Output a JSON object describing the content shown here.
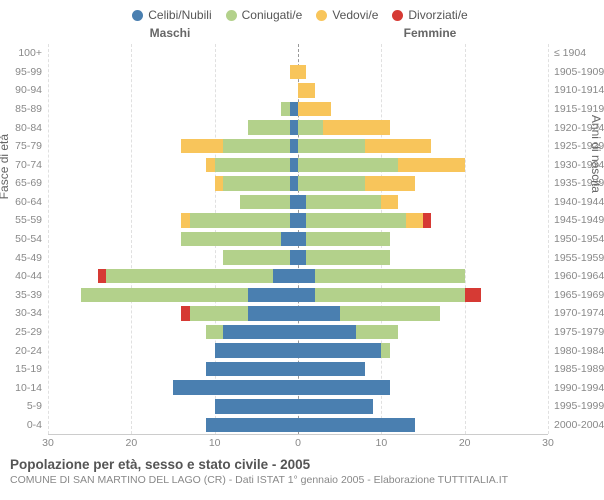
{
  "legend": [
    {
      "label": "Celibi/Nubili",
      "color": "#4a7fb0"
    },
    {
      "label": "Coniugati/e",
      "color": "#b3d18b"
    },
    {
      "label": "Vedovi/e",
      "color": "#f8c55b"
    },
    {
      "label": "Divorziati/e",
      "color": "#d63a34"
    }
  ],
  "header_left": "Maschi",
  "header_right": "Femmine",
  "y_left_label": "Fasce di età",
  "y_right_label": "Anni di nascita",
  "x_max": 30,
  "x_ticks": [
    30,
    20,
    10,
    0,
    10,
    20,
    30
  ],
  "colors": {
    "celibi": "#4a7fb0",
    "coniugati": "#b3d18b",
    "vedovi": "#f8c55b",
    "divorziati": "#d63a34",
    "grid": "#e0e0e0",
    "center": "#999999",
    "background": "#ffffff"
  },
  "rows": [
    {
      "age": "100+",
      "birth": "≤ 1904",
      "m": {
        "c": 0,
        "co": 0,
        "v": 0,
        "d": 0
      },
      "f": {
        "c": 0,
        "co": 0,
        "v": 0,
        "d": 0
      }
    },
    {
      "age": "95-99",
      "birth": "1905-1909",
      "m": {
        "c": 0,
        "co": 0,
        "v": 1,
        "d": 0
      },
      "f": {
        "c": 0,
        "co": 0,
        "v": 1,
        "d": 0
      }
    },
    {
      "age": "90-94",
      "birth": "1910-1914",
      "m": {
        "c": 0,
        "co": 0,
        "v": 0,
        "d": 0
      },
      "f": {
        "c": 0,
        "co": 0,
        "v": 2,
        "d": 0
      }
    },
    {
      "age": "85-89",
      "birth": "1915-1919",
      "m": {
        "c": 1,
        "co": 1,
        "v": 0,
        "d": 0
      },
      "f": {
        "c": 0,
        "co": 0,
        "v": 4,
        "d": 0
      }
    },
    {
      "age": "80-84",
      "birth": "1920-1924",
      "m": {
        "c": 1,
        "co": 5,
        "v": 0,
        "d": 0
      },
      "f": {
        "c": 0,
        "co": 3,
        "v": 8,
        "d": 0
      }
    },
    {
      "age": "75-79",
      "birth": "1925-1929",
      "m": {
        "c": 1,
        "co": 8,
        "v": 5,
        "d": 0
      },
      "f": {
        "c": 0,
        "co": 8,
        "v": 8,
        "d": 0
      }
    },
    {
      "age": "70-74",
      "birth": "1930-1934",
      "m": {
        "c": 1,
        "co": 9,
        "v": 1,
        "d": 0
      },
      "f": {
        "c": 0,
        "co": 12,
        "v": 8,
        "d": 0
      }
    },
    {
      "age": "65-69",
      "birth": "1935-1939",
      "m": {
        "c": 1,
        "co": 8,
        "v": 1,
        "d": 0
      },
      "f": {
        "c": 0,
        "co": 8,
        "v": 6,
        "d": 0
      }
    },
    {
      "age": "60-64",
      "birth": "1940-1944",
      "m": {
        "c": 1,
        "co": 6,
        "v": 0,
        "d": 0
      },
      "f": {
        "c": 1,
        "co": 9,
        "v": 2,
        "d": 0
      }
    },
    {
      "age": "55-59",
      "birth": "1945-1949",
      "m": {
        "c": 1,
        "co": 12,
        "v": 1,
        "d": 0
      },
      "f": {
        "c": 1,
        "co": 12,
        "v": 2,
        "d": 1
      }
    },
    {
      "age": "50-54",
      "birth": "1950-1954",
      "m": {
        "c": 2,
        "co": 12,
        "v": 0,
        "d": 0
      },
      "f": {
        "c": 1,
        "co": 10,
        "v": 0,
        "d": 0
      }
    },
    {
      "age": "45-49",
      "birth": "1955-1959",
      "m": {
        "c": 1,
        "co": 8,
        "v": 0,
        "d": 0
      },
      "f": {
        "c": 1,
        "co": 10,
        "v": 0,
        "d": 0
      }
    },
    {
      "age": "40-44",
      "birth": "1960-1964",
      "m": {
        "c": 3,
        "co": 20,
        "v": 0,
        "d": 1
      },
      "f": {
        "c": 2,
        "co": 18,
        "v": 0,
        "d": 0
      }
    },
    {
      "age": "35-39",
      "birth": "1965-1969",
      "m": {
        "c": 6,
        "co": 20,
        "v": 0,
        "d": 0
      },
      "f": {
        "c": 2,
        "co": 18,
        "v": 0,
        "d": 2
      }
    },
    {
      "age": "30-34",
      "birth": "1970-1974",
      "m": {
        "c": 6,
        "co": 7,
        "v": 0,
        "d": 1
      },
      "f": {
        "c": 5,
        "co": 12,
        "v": 0,
        "d": 0
      }
    },
    {
      "age": "25-29",
      "birth": "1975-1979",
      "m": {
        "c": 9,
        "co": 2,
        "v": 0,
        "d": 0
      },
      "f": {
        "c": 7,
        "co": 5,
        "v": 0,
        "d": 0
      }
    },
    {
      "age": "20-24",
      "birth": "1980-1984",
      "m": {
        "c": 10,
        "co": 0,
        "v": 0,
        "d": 0
      },
      "f": {
        "c": 10,
        "co": 1,
        "v": 0,
        "d": 0
      }
    },
    {
      "age": "15-19",
      "birth": "1985-1989",
      "m": {
        "c": 11,
        "co": 0,
        "v": 0,
        "d": 0
      },
      "f": {
        "c": 8,
        "co": 0,
        "v": 0,
        "d": 0
      }
    },
    {
      "age": "10-14",
      "birth": "1990-1994",
      "m": {
        "c": 15,
        "co": 0,
        "v": 0,
        "d": 0
      },
      "f": {
        "c": 11,
        "co": 0,
        "v": 0,
        "d": 0
      }
    },
    {
      "age": "5-9",
      "birth": "1995-1999",
      "m": {
        "c": 10,
        "co": 0,
        "v": 0,
        "d": 0
      },
      "f": {
        "c": 9,
        "co": 0,
        "v": 0,
        "d": 0
      }
    },
    {
      "age": "0-4",
      "birth": "2000-2004",
      "m": {
        "c": 11,
        "co": 0,
        "v": 0,
        "d": 0
      },
      "f": {
        "c": 14,
        "co": 0,
        "v": 0,
        "d": 0
      }
    }
  ],
  "title": "Popolazione per età, sesso e stato civile - 2005",
  "subtitle": "COMUNE DI SAN MARTINO DEL LAGO (CR) - Dati ISTAT 1° gennaio 2005 - Elaborazione TUTTITALIA.IT"
}
